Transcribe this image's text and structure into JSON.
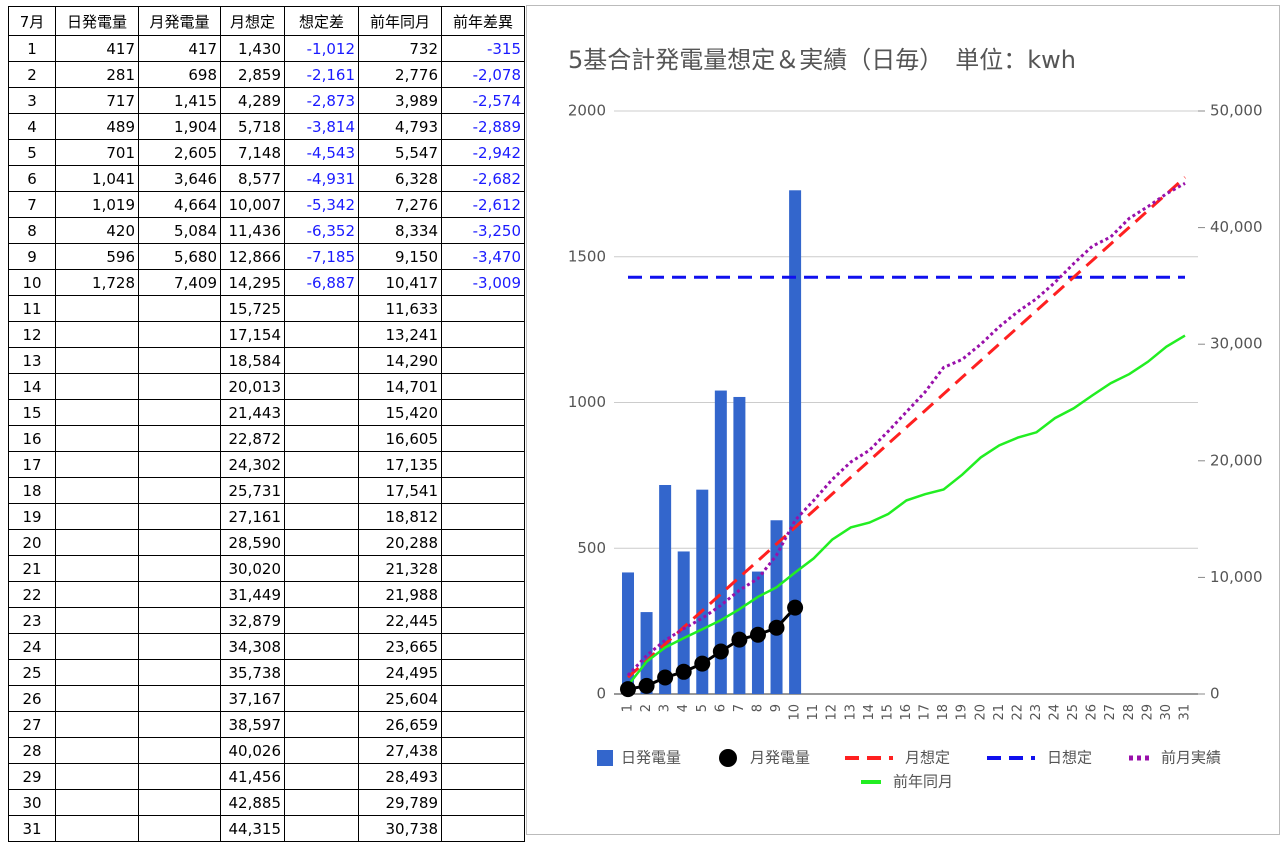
{
  "table": {
    "header": [
      "7月",
      "日発電量",
      "月発電量",
      "月想定",
      "想定差",
      "前年同月",
      "前年差異"
    ],
    "rows": [
      [
        "1",
        "417",
        "417",
        "1,430",
        "-1,012",
        "732",
        "-315"
      ],
      [
        "2",
        "281",
        "698",
        "2,859",
        "-2,161",
        "2,776",
        "-2,078"
      ],
      [
        "3",
        "717",
        "1,415",
        "4,289",
        "-2,873",
        "3,989",
        "-2,574"
      ],
      [
        "4",
        "489",
        "1,904",
        "5,718",
        "-3,814",
        "4,793",
        "-2,889"
      ],
      [
        "5",
        "701",
        "2,605",
        "7,148",
        "-4,543",
        "5,547",
        "-2,942"
      ],
      [
        "6",
        "1,041",
        "3,646",
        "8,577",
        "-4,931",
        "6,328",
        "-2,682"
      ],
      [
        "7",
        "1,019",
        "4,664",
        "10,007",
        "-5,342",
        "7,276",
        "-2,612"
      ],
      [
        "8",
        "420",
        "5,084",
        "11,436",
        "-6,352",
        "8,334",
        "-3,250"
      ],
      [
        "9",
        "596",
        "5,680",
        "12,866",
        "-7,185",
        "9,150",
        "-3,470"
      ],
      [
        "10",
        "1,728",
        "7,409",
        "14,295",
        "-6,887",
        "10,417",
        "-3,009"
      ],
      [
        "11",
        null,
        null,
        "15,725",
        null,
        "11,633",
        null
      ],
      [
        "12",
        null,
        null,
        "17,154",
        null,
        "13,241",
        null
      ],
      [
        "13",
        null,
        null,
        "18,584",
        null,
        "14,290",
        null
      ],
      [
        "14",
        null,
        null,
        "20,013",
        null,
        "14,701",
        null
      ],
      [
        "15",
        null,
        null,
        "21,443",
        null,
        "15,420",
        null
      ],
      [
        "16",
        null,
        null,
        "22,872",
        null,
        "16,605",
        null
      ],
      [
        "17",
        null,
        null,
        "24,302",
        null,
        "17,135",
        null
      ],
      [
        "18",
        null,
        null,
        "25,731",
        null,
        "17,541",
        null
      ],
      [
        "19",
        null,
        null,
        "27,161",
        null,
        "18,812",
        null
      ],
      [
        "20",
        null,
        null,
        "28,590",
        null,
        "20,288",
        null
      ],
      [
        "21",
        null,
        null,
        "30,020",
        null,
        "21,328",
        null
      ],
      [
        "22",
        null,
        null,
        "31,449",
        null,
        "21,988",
        null
      ],
      [
        "23",
        null,
        null,
        "32,879",
        null,
        "22,445",
        null
      ],
      [
        "24",
        null,
        null,
        "34,308",
        null,
        "23,665",
        null
      ],
      [
        "25",
        null,
        null,
        "35,738",
        null,
        "24,495",
        null
      ],
      [
        "26",
        null,
        null,
        "37,167",
        null,
        "25,604",
        null
      ],
      [
        "27",
        null,
        null,
        "38,597",
        null,
        "26,659",
        null
      ],
      [
        "28",
        null,
        null,
        "40,026",
        null,
        "27,438",
        null
      ],
      [
        "29",
        null,
        null,
        "41,456",
        null,
        "28,493",
        null
      ],
      [
        "30",
        null,
        null,
        "42,885",
        null,
        "29,789",
        null
      ],
      [
        "31",
        null,
        null,
        "44,315",
        null,
        "30,738",
        null
      ]
    ]
  },
  "chart_data": {
    "type": "combo",
    "title": "5基合計発電量想定＆実績（日毎）　単位：kwh",
    "categories": [
      "1",
      "2",
      "3",
      "4",
      "5",
      "6",
      "7",
      "8",
      "9",
      "10",
      "11",
      "12",
      "13",
      "14",
      "15",
      "16",
      "17",
      "18",
      "19",
      "20",
      "21",
      "22",
      "23",
      "24",
      "25",
      "26",
      "27",
      "28",
      "29",
      "30",
      "31"
    ],
    "ylim": [
      0,
      2000
    ],
    "yticks": [
      0,
      500,
      1000,
      1500,
      2000
    ],
    "y2lim": [
      0,
      50000
    ],
    "y2ticks": [
      0,
      {
        "value": 10000,
        "label": "10,000"
      },
      {
        "value": 20000,
        "label": "20,000"
      },
      {
        "value": 30000,
        "label": "30,000"
      },
      {
        "value": 40000,
        "label": "40,000"
      },
      {
        "value": 50000,
        "label": "50,000"
      }
    ],
    "grid": true,
    "legend": "bottom",
    "series": [
      {
        "name": "日発電量",
        "type": "bar",
        "color": "#3366cc",
        "axis": "y",
        "values": [
          417,
          281,
          717,
          489,
          701,
          1041,
          1019,
          420,
          596,
          1728,
          null,
          null,
          null,
          null,
          null,
          null,
          null,
          null,
          null,
          null,
          null,
          null,
          null,
          null,
          null,
          null,
          null,
          null,
          null,
          null,
          null
        ]
      },
      {
        "name": "月発電量",
        "type": "line",
        "style": "solid",
        "marker": "circle",
        "color": "#000000",
        "axis": "y2",
        "values": [
          417,
          698,
          1415,
          1904,
          2605,
          3646,
          4664,
          5084,
          5680,
          7409,
          null,
          null,
          null,
          null,
          null,
          null,
          null,
          null,
          null,
          null,
          null,
          null,
          null,
          null,
          null,
          null,
          null,
          null,
          null,
          null,
          null
        ]
      },
      {
        "name": "月想定",
        "type": "line",
        "style": "dashed",
        "color": "#ff2020",
        "axis": "y2",
        "values": [
          1430,
          2859,
          4289,
          5718,
          7148,
          8577,
          10007,
          11436,
          12866,
          14295,
          15725,
          17154,
          18584,
          20013,
          21443,
          22872,
          24302,
          25731,
          27161,
          28590,
          30020,
          31449,
          32879,
          34308,
          35738,
          37167,
          38597,
          40026,
          41456,
          42885,
          44315
        ]
      },
      {
        "name": "日想定",
        "type": "line",
        "style": "dashed",
        "color": "#1010ee",
        "axis": "y",
        "values": [
          1430,
          1430,
          1430,
          1430,
          1430,
          1430,
          1430,
          1430,
          1430,
          1430,
          1430,
          1430,
          1430,
          1430,
          1430,
          1430,
          1430,
          1430,
          1430,
          1430,
          1430,
          1430,
          1430,
          1430,
          1430,
          1430,
          1430,
          1430,
          1430,
          1430,
          1430
        ]
      },
      {
        "name": "前月実績",
        "type": "line",
        "style": "dotted",
        "color": "#9910aa",
        "axis": "y2",
        "values": [
          1600,
          3300,
          4600,
          5600,
          6500,
          7600,
          8900,
          9900,
          11900,
          14900,
          16600,
          18400,
          19900,
          20900,
          22500,
          24200,
          25900,
          28000,
          28700,
          30000,
          31500,
          32800,
          33900,
          35300,
          36900,
          38400,
          39200,
          40800,
          41800,
          42900,
          43800
        ]
      },
      {
        "name": "前年同月",
        "type": "line",
        "style": "solid",
        "color": "#22ee22",
        "axis": "y2",
        "values": [
          732,
          2776,
          3989,
          4793,
          5547,
          6328,
          7276,
          8334,
          9150,
          10417,
          11633,
          13241,
          14290,
          14701,
          15420,
          16605,
          17135,
          17541,
          18812,
          20288,
          21328,
          21988,
          22445,
          23665,
          24495,
          25604,
          26659,
          27438,
          28493,
          29789,
          30738
        ]
      }
    ]
  }
}
